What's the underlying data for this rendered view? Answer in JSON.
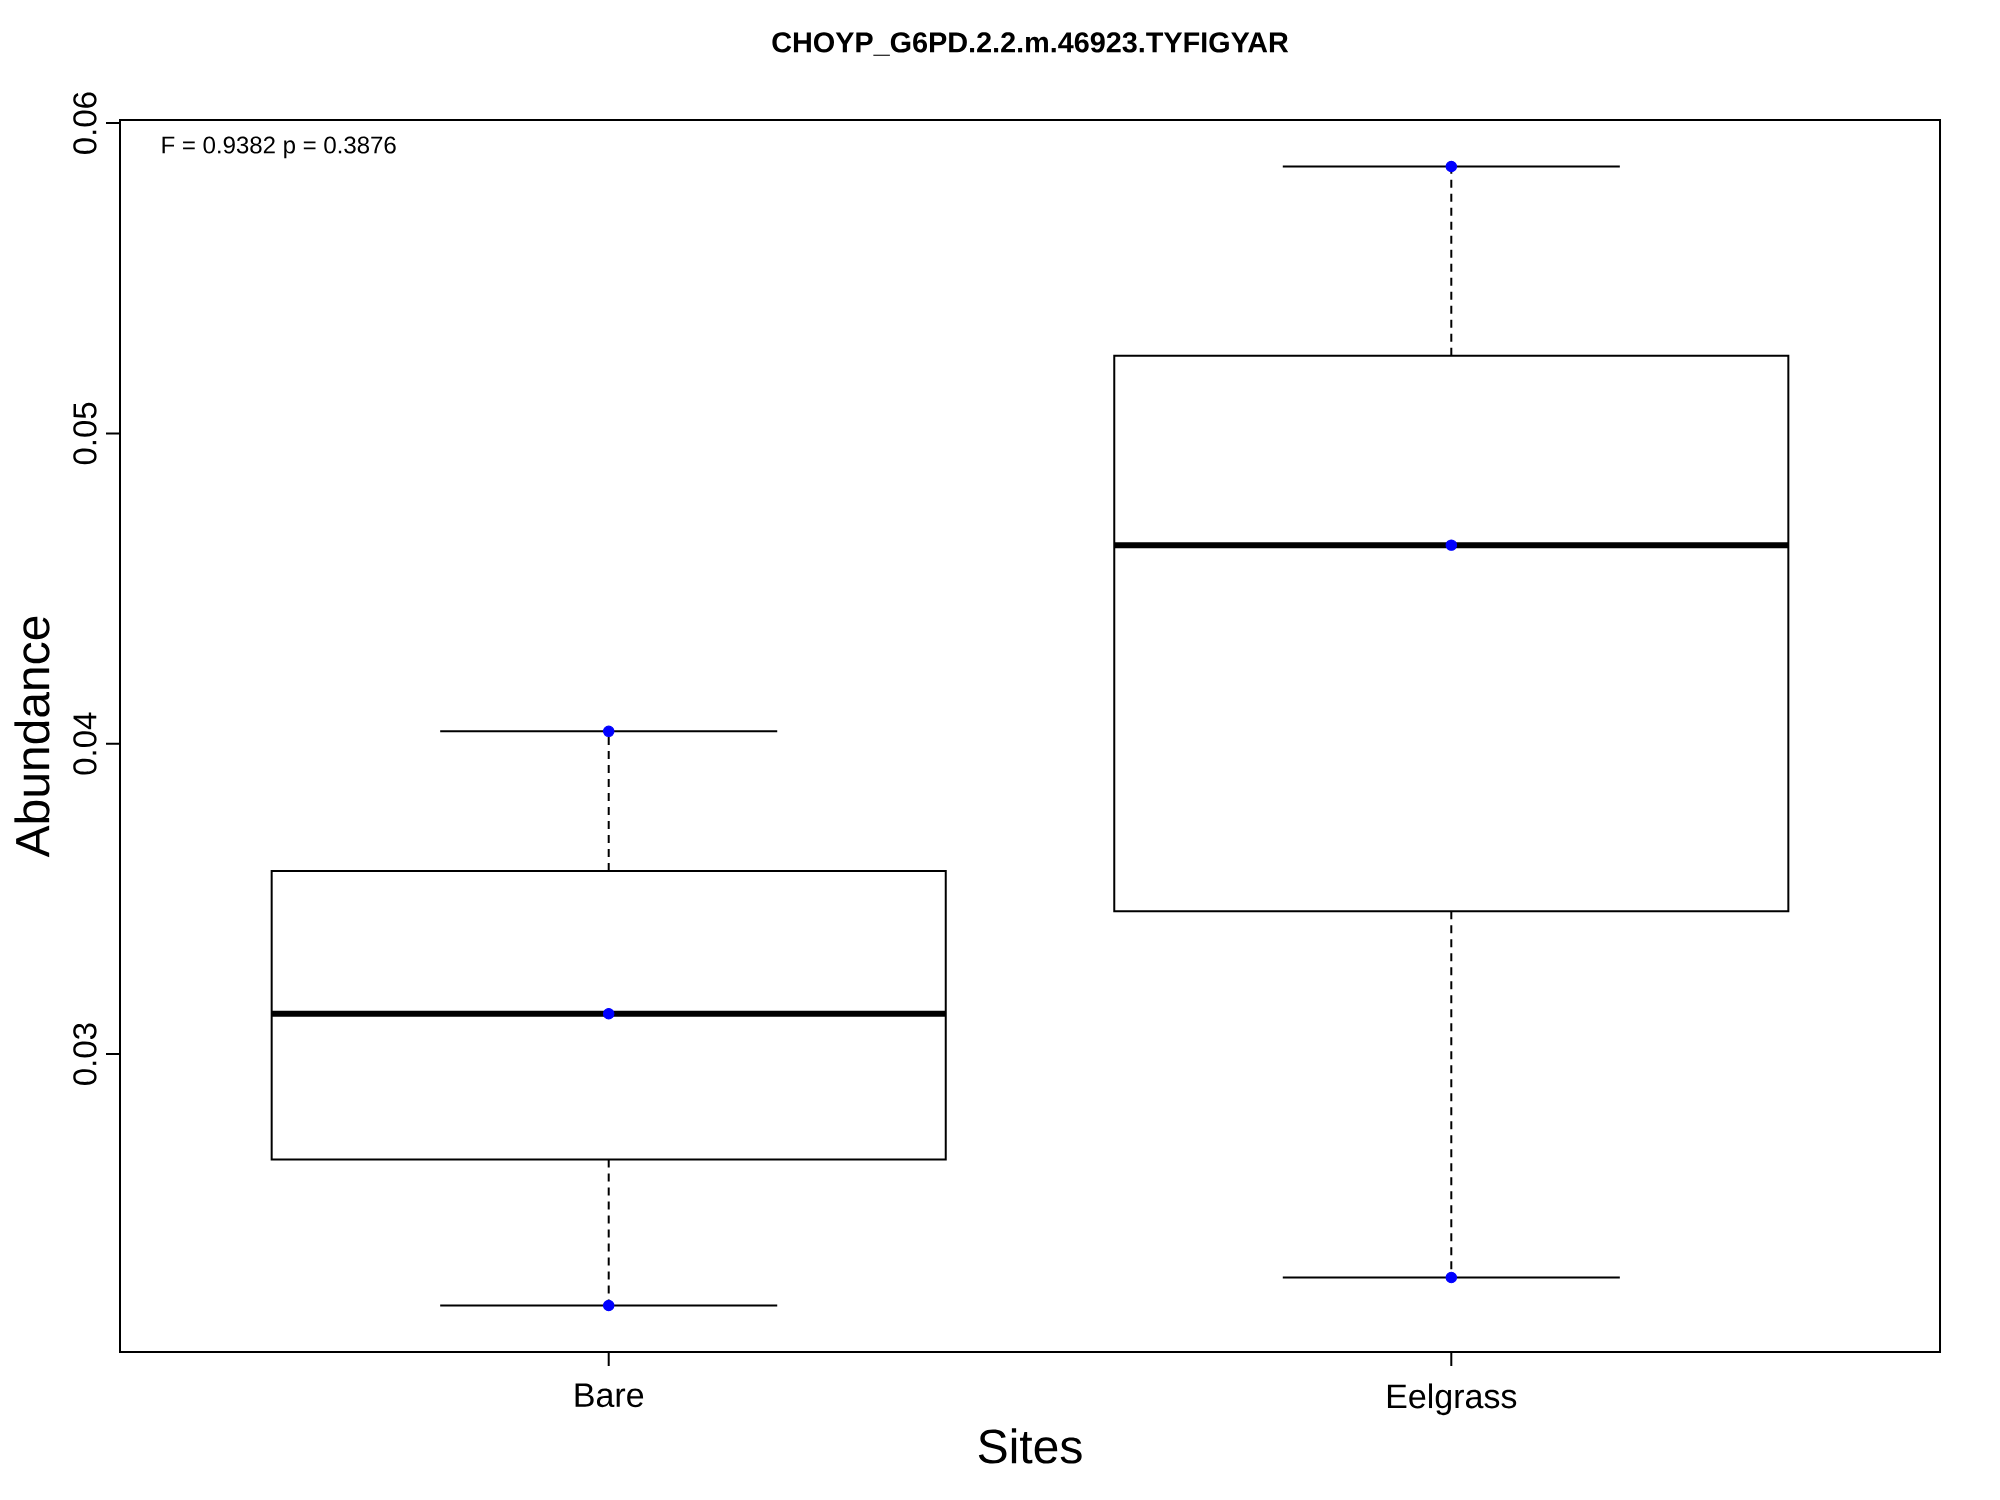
{
  "chart_data": {
    "type": "box",
    "title": "CHOYP_G6PD.2.2.m.46923.TYFIGYAR",
    "xlabel": "Sites",
    "ylabel": "Abundance",
    "annotations": [
      "F = 0.9382 p = 0.3876"
    ],
    "categories": [
      "Bare",
      "Eelgrass"
    ],
    "color": "#000000",
    "boxes": [
      {
        "low": 0.0219,
        "q1": 0.0266,
        "median": 0.0313,
        "q3": 0.0359,
        "high": 0.0404
      },
      {
        "low": 0.0228,
        "q1": 0.0346,
        "median": 0.0464,
        "q3": 0.0525,
        "high": 0.0586
      }
    ],
    "series": [
      {
        "type": "scatter",
        "color": "#0000ff",
        "marker": "circle",
        "x": [
          "Bare",
          "Bare",
          "Bare",
          "Eelgrass",
          "Eelgrass",
          "Eelgrass"
        ],
        "values": [
          0.0404,
          0.0313,
          0.0219,
          0.0586,
          0.0464,
          0.0228
        ]
      }
    ],
    "ylim": [
      0.0204,
      0.0601
    ],
    "yticks": [
      0.03,
      0.04,
      0.05,
      0.06
    ]
  }
}
